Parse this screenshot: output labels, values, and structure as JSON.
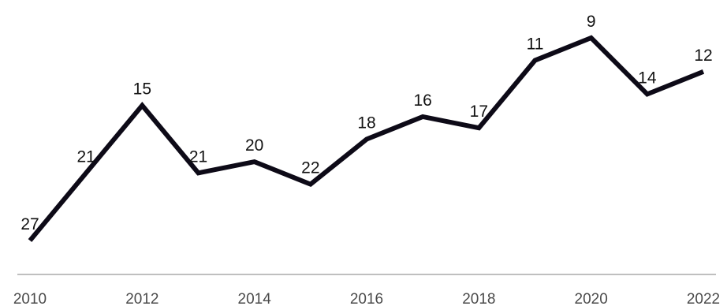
{
  "chart_data": {
    "type": "line",
    "title": "",
    "xlabel": "",
    "ylabel": "",
    "x": [
      2010,
      2011,
      2012,
      2013,
      2014,
      2015,
      2016,
      2017,
      2018,
      2019,
      2020,
      2021,
      2022
    ],
    "values": [
      27,
      21,
      15,
      21,
      20,
      22,
      18,
      16,
      17,
      11,
      9,
      14,
      12
    ],
    "x_tick_labels": [
      "2010",
      "2012",
      "2014",
      "2016",
      "2018",
      "2020",
      "2022"
    ],
    "y_inverted": true,
    "y_axis_visible": false,
    "grid": false,
    "legend": "none",
    "colors": {
      "line": "#0d0a17",
      "axis": "#bfbfbf",
      "label_text": "#111111",
      "tick_text": "#4a4a4a"
    }
  }
}
